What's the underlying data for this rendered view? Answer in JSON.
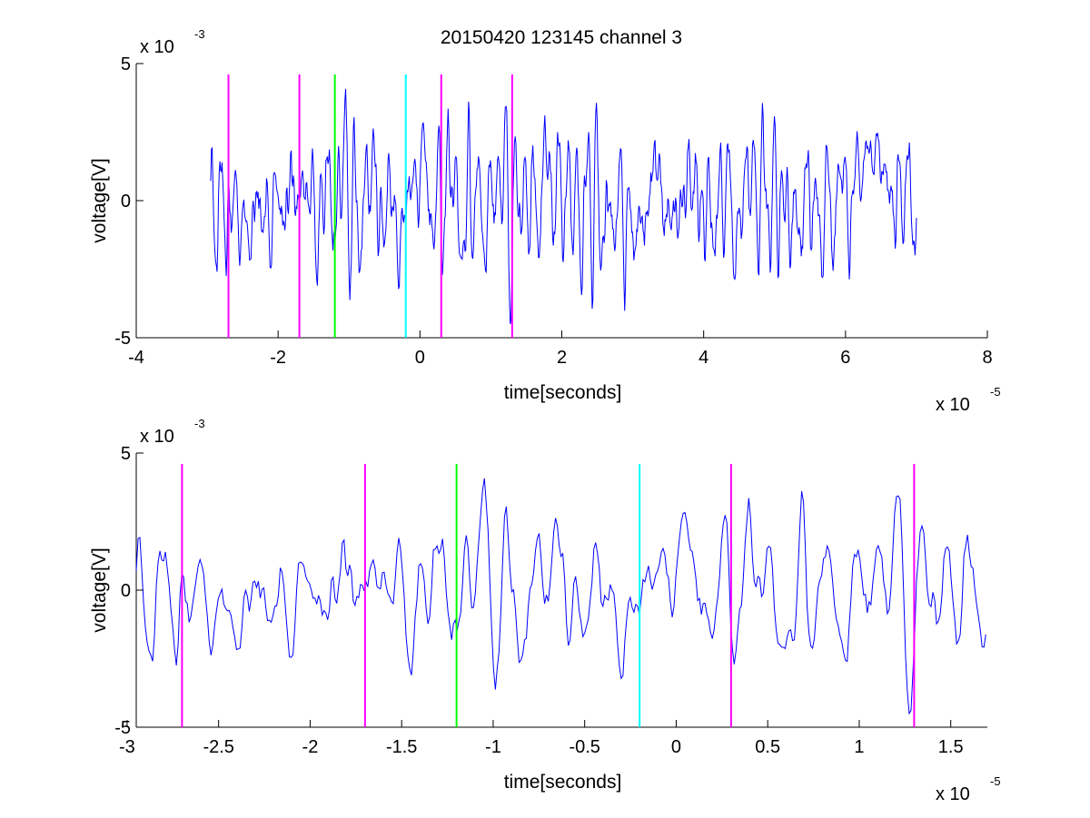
{
  "figure": {
    "title": "20150420 123145 channel 3"
  },
  "chart_data": [
    {
      "type": "line",
      "xlabel": "time[seconds]",
      "ylabel": "voltage[V]",
      "xlim": [
        -4e-05,
        8e-05
      ],
      "ylim": [
        -0.005,
        0.005
      ],
      "x_ticks": [
        -4e-05,
        -2e-05,
        0,
        2e-05,
        4e-05,
        6e-05,
        8e-05
      ],
      "x_tick_labels": [
        "-4",
        "-2",
        "0",
        "2",
        "4",
        "6",
        "8"
      ],
      "y_ticks": [
        -0.005,
        0,
        0.005
      ],
      "y_tick_labels": [
        "-5",
        "0",
        "5"
      ],
      "x_multiplier": {
        "base": "x 10",
        "exponent": "-5"
      },
      "y_multiplier": {
        "base": "x 10",
        "exponent": "-3"
      },
      "grid": false,
      "series": [
        {
          "color": "#0000ff",
          "x_range": [
            -2.95e-05,
            7e-05
          ],
          "points": 1000,
          "y_range_approx": [
            -0.0045,
            0.0042
          ]
        }
      ],
      "markers": [
        {
          "x": -2.7e-05,
          "color": "#ff00ff"
        },
        {
          "x": -1.7e-05,
          "color": "#ff00ff"
        },
        {
          "x": -1.2e-05,
          "color": "#00ff00"
        },
        {
          "x": -2e-06,
          "color": "#00ffff"
        },
        {
          "x": 3e-06,
          "color": "#ff00ff"
        },
        {
          "x": 1.3e-05,
          "color": "#ff00ff"
        }
      ]
    },
    {
      "type": "line",
      "xlabel": "time[seconds]",
      "ylabel": "voltage[V]",
      "xlim": [
        -2.95e-05,
        1.7e-05
      ],
      "ylim": [
        -0.005,
        0.005
      ],
      "x_ticks": [
        -3e-05,
        -2.5e-05,
        -2e-05,
        -1.5e-05,
        -1e-05,
        -5e-06,
        0,
        5e-06,
        1e-05,
        1.5e-05
      ],
      "x_tick_labels": [
        "-3",
        "-2.5",
        "-2",
        "-1.5",
        "-1",
        "-0.5",
        "0",
        "0.5",
        "1",
        "1.5"
      ],
      "y_ticks": [
        -0.005,
        0,
        0.005
      ],
      "y_tick_labels": [
        "-5",
        "0",
        "5"
      ],
      "x_multiplier": {
        "base": "x 10",
        "exponent": "-5"
      },
      "y_multiplier": {
        "base": "x 10",
        "exponent": "-3"
      },
      "grid": false,
      "series": [
        {
          "color": "#0000ff",
          "x_range": [
            -2.95e-05,
            1.7e-05
          ],
          "points": 470,
          "y_range_approx": [
            -0.0045,
            0.0042
          ]
        }
      ],
      "markers": [
        {
          "x": -2.7e-05,
          "color": "#ff00ff"
        },
        {
          "x": -1.7e-05,
          "color": "#ff00ff"
        },
        {
          "x": -1.2e-05,
          "color": "#00ff00"
        },
        {
          "x": -2e-06,
          "color": "#00ffff"
        },
        {
          "x": 3e-06,
          "color": "#ff00ff"
        },
        {
          "x": 1.3e-05,
          "color": "#ff00ff"
        }
      ]
    }
  ]
}
